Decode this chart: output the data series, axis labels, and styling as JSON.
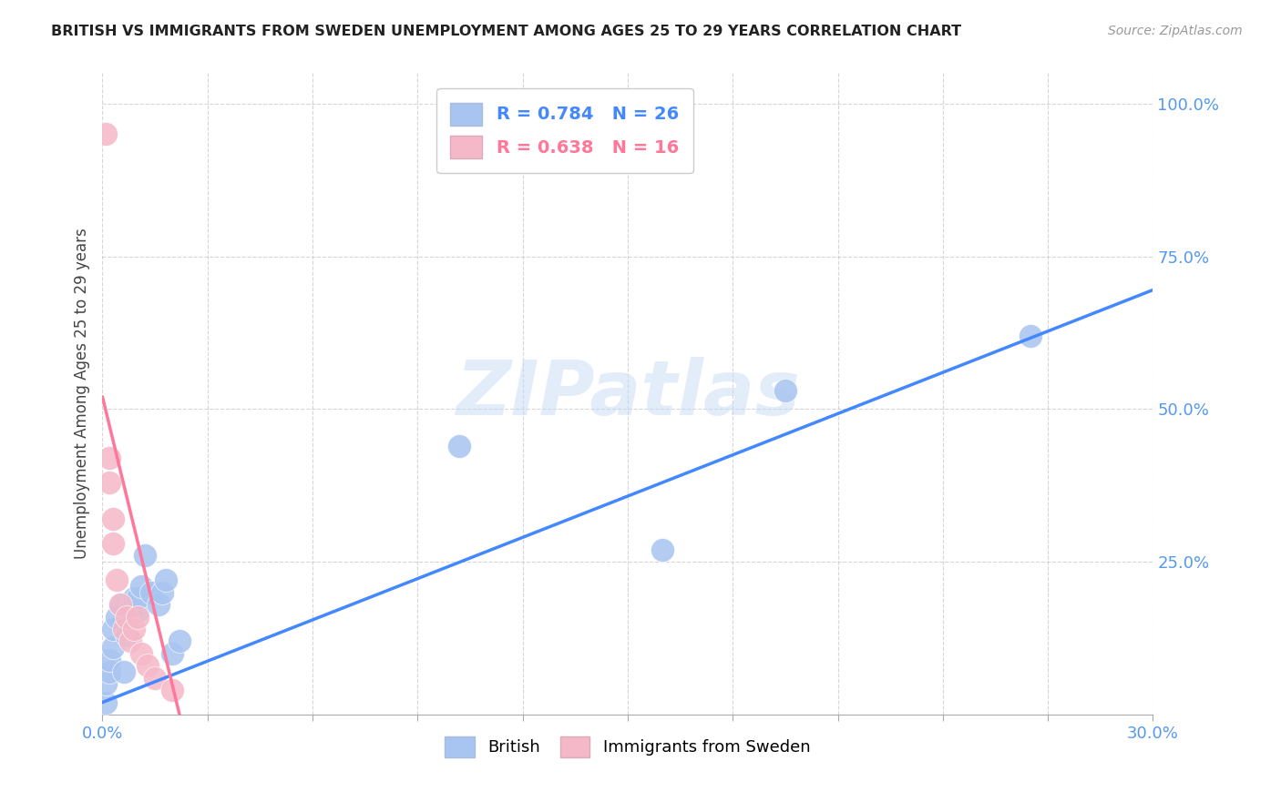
{
  "title": "BRITISH VS IMMIGRANTS FROM SWEDEN UNEMPLOYMENT AMONG AGES 25 TO 29 YEARS CORRELATION CHART",
  "source": "Source: ZipAtlas.com",
  "ylabel": "Unemployment Among Ages 25 to 29 years",
  "watermark": "ZIPatlas",
  "british_color": "#a8c4f0",
  "sweden_color": "#f5b8c8",
  "british_line_color": "#4488ff",
  "sweden_line_color": "#ff7799",
  "british_r": "0.784",
  "british_n": "26",
  "sweden_r": "0.638",
  "sweden_n": "16",
  "xmin": 0.0,
  "xmax": 0.3,
  "ymin": 0.0,
  "ymax": 1.05,
  "british_x": [
    0.001,
    0.001,
    0.002,
    0.002,
    0.003,
    0.003,
    0.004,
    0.005,
    0.006,
    0.007,
    0.008,
    0.009,
    0.01,
    0.01,
    0.011,
    0.012,
    0.014,
    0.016,
    0.017,
    0.018,
    0.02,
    0.022,
    0.102,
    0.16,
    0.195,
    0.265
  ],
  "british_y": [
    0.02,
    0.05,
    0.07,
    0.09,
    0.11,
    0.14,
    0.16,
    0.18,
    0.07,
    0.13,
    0.17,
    0.19,
    0.17,
    0.19,
    0.21,
    0.26,
    0.2,
    0.18,
    0.2,
    0.22,
    0.1,
    0.12,
    0.44,
    0.27,
    0.53,
    0.62
  ],
  "sweden_x": [
    0.001,
    0.002,
    0.002,
    0.003,
    0.003,
    0.004,
    0.005,
    0.006,
    0.007,
    0.008,
    0.009,
    0.01,
    0.011,
    0.013,
    0.015,
    0.02
  ],
  "sweden_y": [
    0.95,
    0.38,
    0.42,
    0.28,
    0.32,
    0.22,
    0.18,
    0.14,
    0.16,
    0.12,
    0.14,
    0.16,
    0.1,
    0.08,
    0.06,
    0.04
  ],
  "british_line_x": [
    0.0,
    0.3
  ],
  "british_line_y": [
    0.02,
    0.695
  ],
  "sweden_line_x": [
    0.0,
    0.022
  ],
  "sweden_line_y": [
    0.52,
    0.0
  ],
  "xticks": [
    0.0,
    0.03,
    0.06,
    0.09,
    0.12,
    0.15,
    0.18,
    0.21,
    0.24,
    0.27,
    0.3
  ],
  "yticks": [
    0.25,
    0.5,
    0.75,
    1.0
  ],
  "xticklabels": [
    "0.0%",
    "",
    "",
    "",
    "",
    "",
    "",
    "",
    "",
    "",
    "30.0%"
  ],
  "yticklabels": [
    "25.0%",
    "50.0%",
    "75.0%",
    "100.0%"
  ]
}
